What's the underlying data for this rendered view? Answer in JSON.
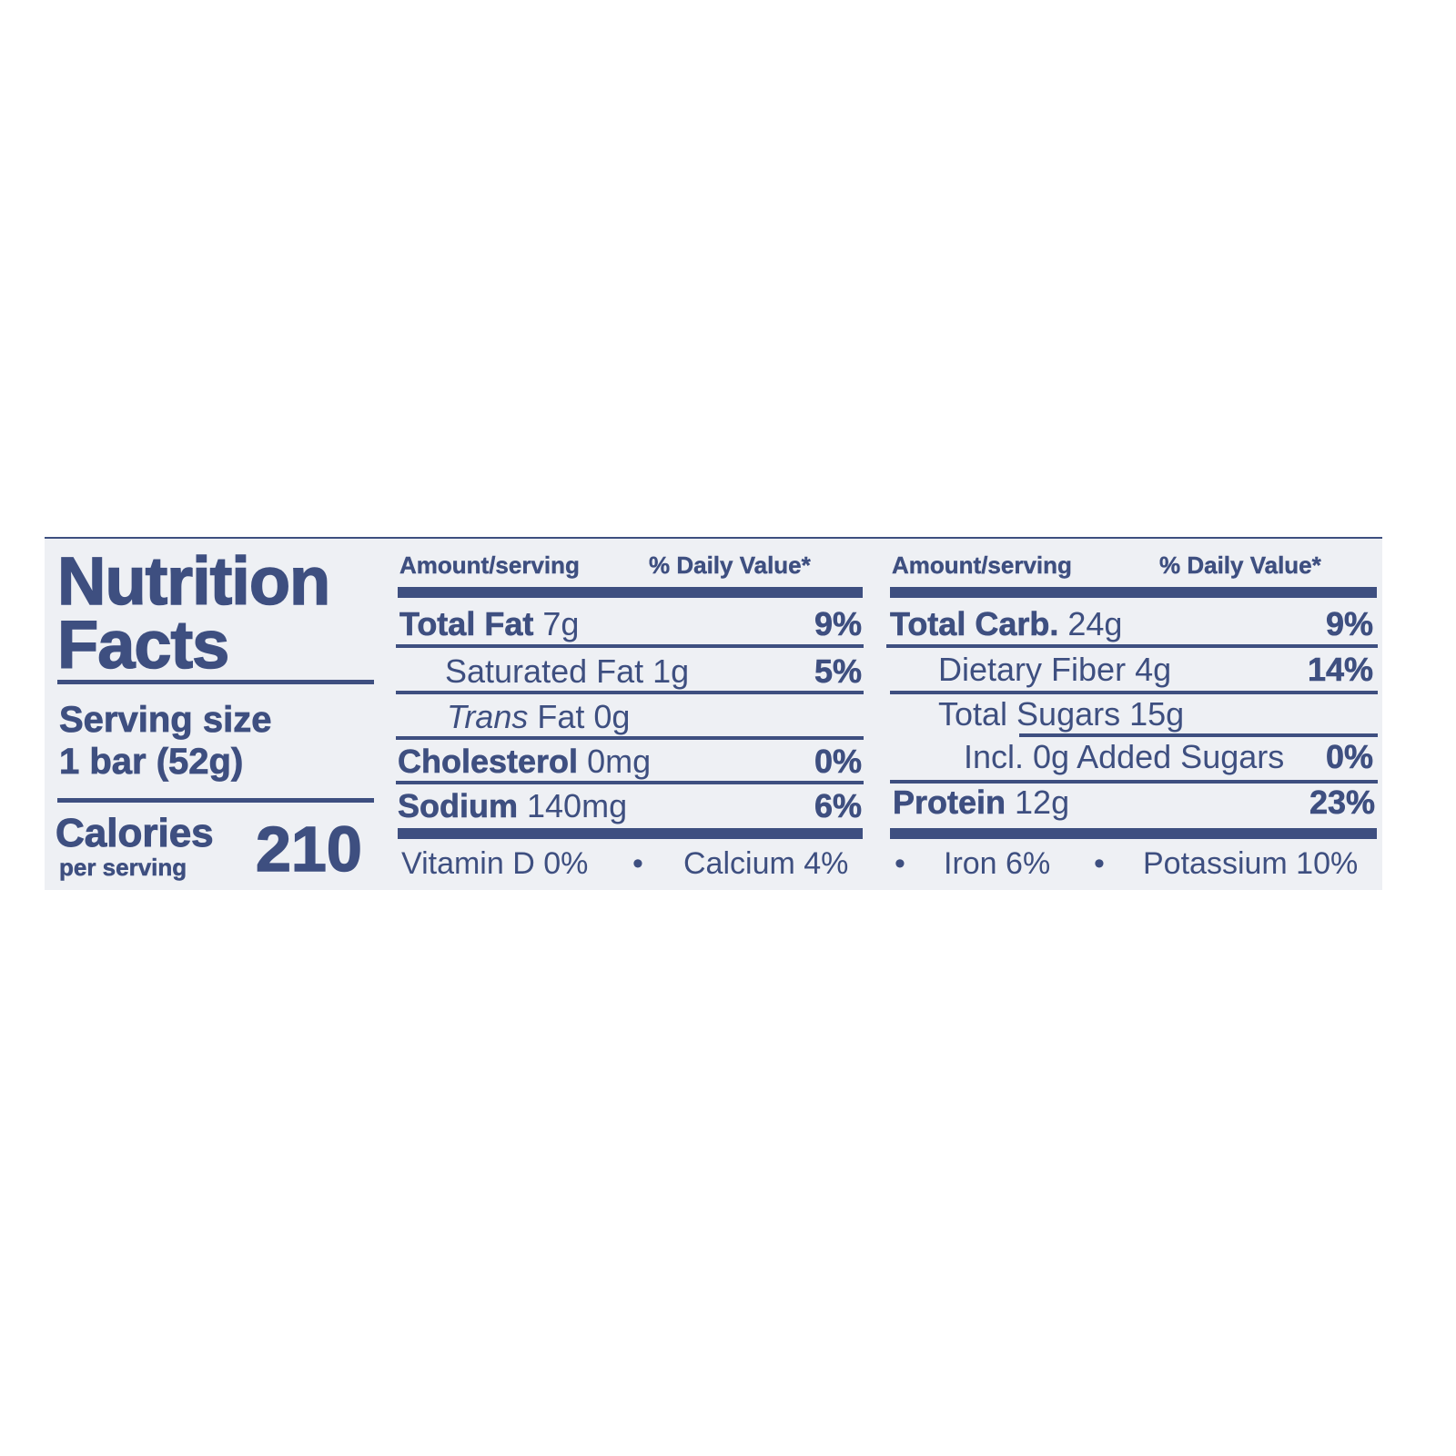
{
  "label": {
    "title_line1": "Nutrition",
    "title_line2": "Facts",
    "serving_size_label": "Serving size",
    "serving_size_value": "1 bar (52g)",
    "calories_label": "Calories",
    "calories_sub": "per serving",
    "calories_value": "210",
    "column_header_amount": "Amount/serving",
    "column_header_dv": "% Daily Value*",
    "left_rows": [
      {
        "name": "Total Fat",
        "amount": "7g",
        "dv": "9%"
      },
      {
        "name": "Saturated Fat",
        "amount": "1g",
        "dv": "5%"
      },
      {
        "name": "Trans",
        "name_suffix": "Fat",
        "amount": "0g",
        "dv": ""
      },
      {
        "name": "Cholesterol",
        "amount": "0mg",
        "dv": "0%"
      },
      {
        "name": "Sodium",
        "amount": "140mg",
        "dv": "6%"
      }
    ],
    "right_rows": [
      {
        "name": "Total Carb.",
        "amount": "24g",
        "dv": "9%"
      },
      {
        "name": "Dietary Fiber",
        "amount": "4g",
        "dv": "14%"
      },
      {
        "name": "Total Sugars",
        "amount": "15g",
        "dv": ""
      },
      {
        "name": "Incl. 0g Added Sugars",
        "amount": "",
        "dv": "0%"
      },
      {
        "name": "Protein",
        "amount": "12g",
        "dv": "23%"
      }
    ],
    "vitamins": [
      "Vitamin D 0%",
      "Calcium 4%",
      "Iron 6%",
      "Potassium 10%"
    ],
    "bullet": "•"
  },
  "colors": {
    "ink": "#3e4f80",
    "panel": "#eef0f4",
    "background": "#ffffff"
  }
}
